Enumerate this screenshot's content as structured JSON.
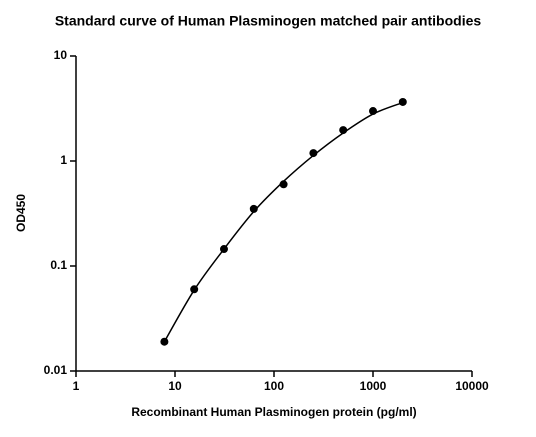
{
  "chart_data": {
    "type": "scatter",
    "title": "Standard curve of Human Plasminogen matched pair antibodies",
    "x_label": "Recombinant Human Plasminogen protein (pg/ml)",
    "y_label": "OD450",
    "x": [
      7.8125,
      15.625,
      31.25,
      62.5,
      125,
      250,
      500,
      1000,
      2000
    ],
    "values": [
      0.019,
      0.06,
      0.145,
      0.35,
      0.6,
      1.19,
      1.97,
      2.99,
      3.65
    ],
    "color": "#000000",
    "fit": {
      "x": [
        7.8125,
        15.625,
        31.25,
        62.5,
        125,
        250,
        500,
        1000,
        2000
      ],
      "y": [
        0.019,
        0.059,
        0.145,
        0.33,
        0.64,
        1.13,
        1.85,
        2.8,
        3.6
      ]
    },
    "xlog": true,
    "ylog": true,
    "xlim": [
      1,
      10000
    ],
    "ylim": [
      0.01,
      10
    ],
    "xticks": [
      1,
      10,
      100,
      1000,
      10000
    ],
    "yticks": [
      0.01,
      0.1,
      1,
      10
    ],
    "grid": false
  }
}
